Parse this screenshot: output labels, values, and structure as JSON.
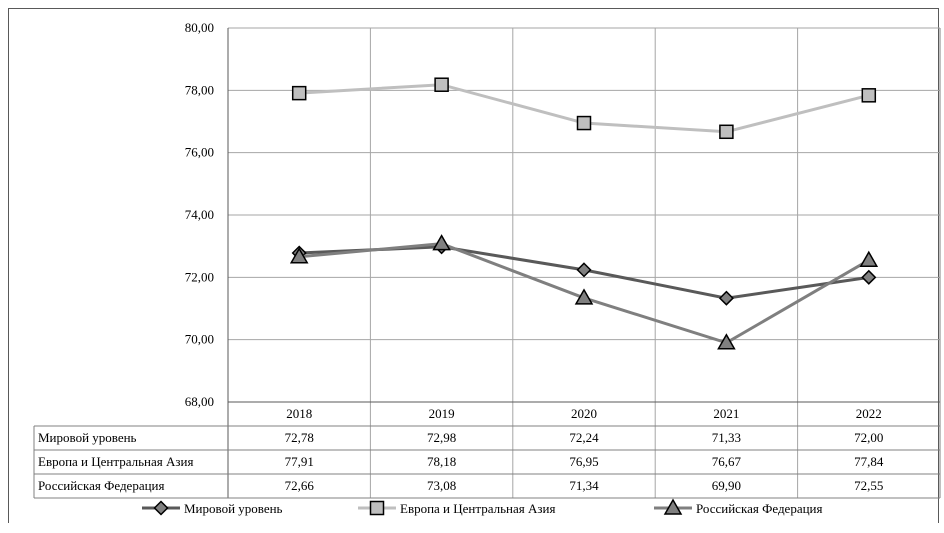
{
  "chart_data": {
    "type": "line",
    "categories": [
      "2018",
      "2019",
      "2020",
      "2021",
      "2022"
    ],
    "ylim": [
      68,
      80
    ],
    "yticks": [
      "68,00",
      "70,00",
      "72,00",
      "74,00",
      "76,00",
      "78,00",
      "80,00"
    ],
    "grid": true,
    "legend_position": "bottom",
    "series": [
      {
        "name": "Мировой уровень",
        "marker": "diamond",
        "color": "#595959",
        "values": [
          72.78,
          72.98,
          72.24,
          71.33,
          72.0
        ],
        "labels": [
          "72,78",
          "72,98",
          "72,24",
          "71,33",
          "72,00"
        ]
      },
      {
        "name": "Европа и Центральная Азия",
        "marker": "square",
        "color": "#bfbfbf",
        "values": [
          77.91,
          78.18,
          76.95,
          76.67,
          77.84
        ],
        "labels": [
          "77,91",
          "78,18",
          "76,95",
          "76,67",
          "77,84"
        ]
      },
      {
        "name": "Российская Федерация",
        "marker": "triangle",
        "color": "#7f7f7f",
        "values": [
          72.66,
          73.08,
          71.34,
          69.9,
          72.55
        ],
        "labels": [
          "72,66",
          "73,08",
          "71,34",
          "69,90",
          "72,55"
        ]
      }
    ]
  }
}
